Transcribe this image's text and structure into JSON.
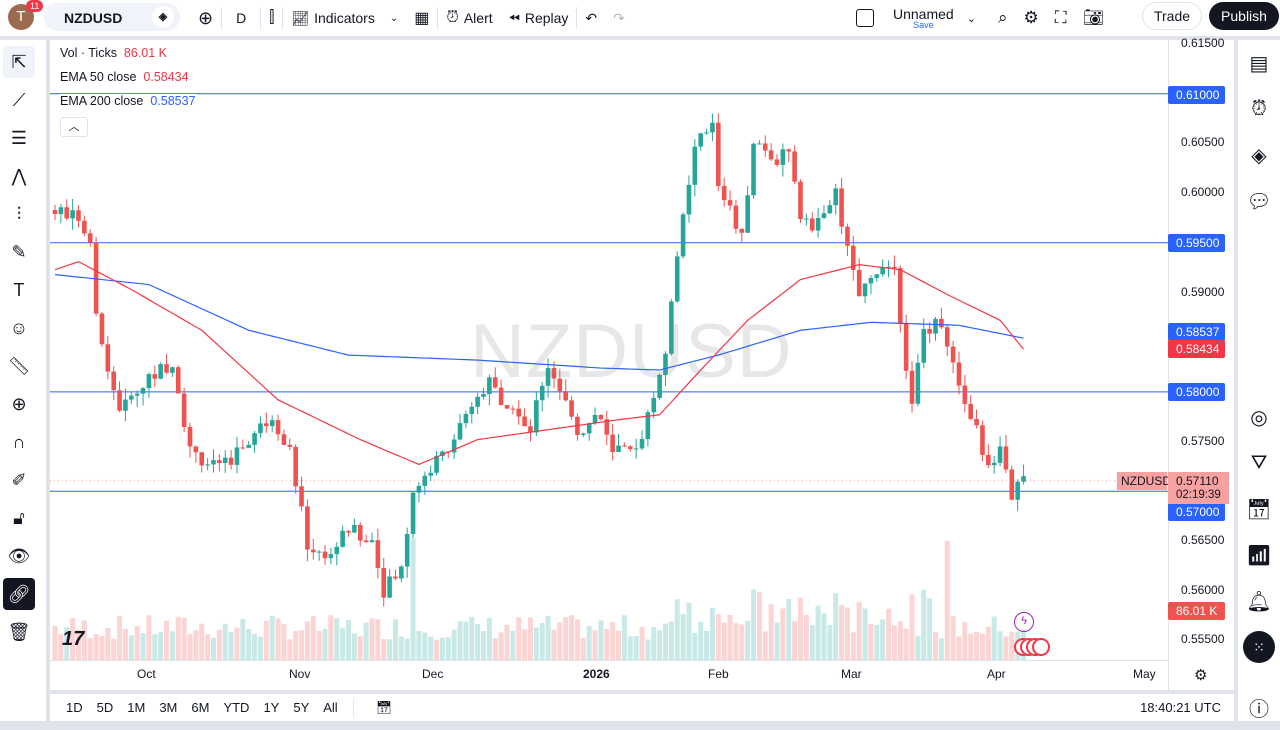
{
  "header": {
    "avatar_letter": "T",
    "notifications": "11",
    "symbol": "NZDUSD",
    "interval": "D",
    "indicators": "Indicators",
    "alert": "Alert",
    "replay": "Replay",
    "layout_name": "Unnamed",
    "layout_sub": "Save",
    "trade": "Trade",
    "publish": "Publish"
  },
  "legend": {
    "vol_label": "Vol · Ticks",
    "vol_value": "86.01 K",
    "ema50_label": "EMA 50 close",
    "ema50_value": "0.58434",
    "ema200_label": "EMA 200 close",
    "ema200_value": "0.58537"
  },
  "watermark": "NZDUSD",
  "price_axis": [
    "0.61500",
    "0.61000",
    "0.60500",
    "0.60000",
    "0.59500",
    "0.59000",
    "0.58500",
    "0.58000",
    "0.57500",
    "0.57000",
    "0.56500",
    "0.56000",
    "0.55500"
  ],
  "tags": {
    "ema200": "0.58537",
    "ema50": "0.58434",
    "line_610": "0.61000",
    "line_595": "0.59500",
    "line_580": "0.58000",
    "line_570": "0.57000",
    "symbol": "NZDUSD",
    "last": "0.57110",
    "countdown": "02:19:39",
    "volume": "86.01 K"
  },
  "time_axis": [
    "Oct",
    "Nov",
    "Dec",
    "2026",
    "Feb",
    "Mar",
    "Apr",
    "May"
  ],
  "ranges": [
    "1D",
    "5D",
    "1M",
    "3M",
    "6M",
    "YTD",
    "1Y",
    "5Y",
    "All"
  ],
  "clock": "18:40:21 UTC",
  "colors": {
    "up": "#26a69a",
    "down": "#ef5350",
    "ema50": "#f23645",
    "ema200": "#2962ff",
    "hline": "#2962ff"
  },
  "chart_data": {
    "type": "candlestick",
    "symbol": "NZDUSD",
    "ylim": [
      0.555,
      0.615
    ],
    "hlines": [
      0.61,
      0.595,
      0.58,
      0.57
    ],
    "close_path": [
      [
        0,
        0.5978
      ],
      [
        3,
        0.5983
      ],
      [
        6,
        0.5953
      ],
      [
        7,
        0.5872
      ],
      [
        11,
        0.5782
      ],
      [
        16,
        0.5812
      ],
      [
        20,
        0.5832
      ],
      [
        23,
        0.5741
      ],
      [
        28,
        0.5721
      ],
      [
        33,
        0.5752
      ],
      [
        37,
        0.5777
      ],
      [
        40,
        0.5741
      ],
      [
        43,
        0.5646
      ],
      [
        46,
        0.5631
      ],
      [
        50,
        0.5661
      ],
      [
        54,
        0.5651
      ],
      [
        56,
        0.5601
      ],
      [
        59,
        0.5621
      ],
      [
        61,
        0.5701
      ],
      [
        66,
        0.5737
      ],
      [
        71,
        0.5782
      ],
      [
        74,
        0.5807
      ],
      [
        78,
        0.5782
      ],
      [
        81,
        0.5762
      ],
      [
        84,
        0.5832
      ],
      [
        89,
        0.5762
      ],
      [
        93,
        0.5772
      ],
      [
        95,
        0.5737
      ],
      [
        100,
        0.5752
      ],
      [
        102,
        0.5797
      ],
      [
        104,
        0.5842
      ],
      [
        106,
        0.5943
      ],
      [
        109,
        0.6043
      ],
      [
        112,
        0.6074
      ],
      [
        113,
        0.6013
      ],
      [
        117,
        0.5953
      ],
      [
        119,
        0.6053
      ],
      [
        123,
        0.6033
      ],
      [
        125,
        0.6048
      ],
      [
        127,
        0.5968
      ],
      [
        130,
        0.5968
      ],
      [
        133,
        0.5998
      ],
      [
        135,
        0.5943
      ],
      [
        137,
        0.5892
      ],
      [
        141,
        0.5933
      ],
      [
        143,
        0.5923
      ],
      [
        146,
        0.5782
      ],
      [
        148,
        0.5862
      ],
      [
        151,
        0.5872
      ],
      [
        154,
        0.5807
      ],
      [
        157,
        0.5762
      ],
      [
        159,
        0.5721
      ],
      [
        161,
        0.5752
      ],
      [
        163,
        0.5697
      ],
      [
        165,
        0.5711
      ]
    ],
    "ema50_path": [
      [
        0,
        0.5923
      ],
      [
        4,
        0.5931
      ],
      [
        13,
        0.5903
      ],
      [
        25,
        0.5862
      ],
      [
        38,
        0.5792
      ],
      [
        52,
        0.5752
      ],
      [
        62,
        0.5727
      ],
      [
        72,
        0.5752
      ],
      [
        84,
        0.5762
      ],
      [
        96,
        0.5772
      ],
      [
        103,
        0.5777
      ],
      [
        110,
        0.5822
      ],
      [
        118,
        0.5872
      ],
      [
        127,
        0.5913
      ],
      [
        137,
        0.5928
      ],
      [
        144,
        0.5923
      ],
      [
        152,
        0.5898
      ],
      [
        161,
        0.5872
      ],
      [
        165,
        0.5843
      ]
    ],
    "ema200_path": [
      [
        0,
        0.5918
      ],
      [
        16,
        0.5908
      ],
      [
        33,
        0.5862
      ],
      [
        50,
        0.5837
      ],
      [
        72,
        0.5832
      ],
      [
        93,
        0.5824
      ],
      [
        103,
        0.5822
      ],
      [
        113,
        0.5837
      ],
      [
        127,
        0.5862
      ],
      [
        139,
        0.587
      ],
      [
        154,
        0.5867
      ],
      [
        165,
        0.5854
      ]
    ]
  }
}
